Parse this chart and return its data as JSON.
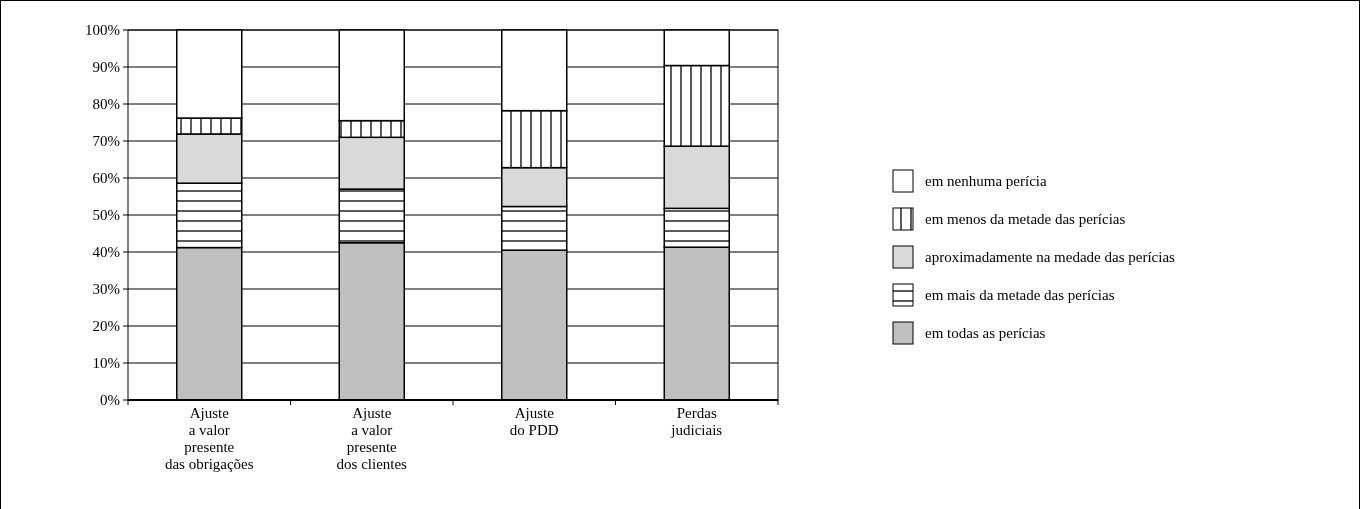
{
  "chart_data": {
    "type": "bar",
    "stacked": true,
    "categories": [
      "Ajuste\na valor\npresente\ndas obrigações",
      "Ajuste\na valor\npresente\ndos clientes",
      "Ajuste\ndo PDD",
      "Perdas\njudiciais"
    ],
    "series": [
      {
        "name": "em todas as perícias",
        "color": "#bfbfbf",
        "values": [
          41.2,
          42.5,
          40.5,
          41.3
        ]
      },
      {
        "name": "em mais da metade das perícias",
        "color": "#ffffff",
        "values": [
          17.4,
          14.5,
          11.8,
          10.5
        ]
      },
      {
        "name": "aproximadamente na medade das perícias",
        "color": "#d9d9d9",
        "values": [
          13.3,
          14,
          10.5,
          16.8
        ]
      },
      {
        "name": "em menos da metade das perícias",
        "color": "#ffffff",
        "values": [
          4.3,
          4.5,
          15.4,
          21.8
        ]
      },
      {
        "name": "em nenhuma perícia",
        "color": "#ffffff",
        "values": [
          23.8,
          24.5,
          21.8,
          9.6
        ]
      }
    ],
    "ylim": [
      0,
      100
    ],
    "yticks": [
      {
        "value": 0,
        "label": "0%"
      },
      {
        "value": 10,
        "label": "10%"
      },
      {
        "value": 20,
        "label": "20%"
      },
      {
        "value": 30,
        "label": "30%"
      },
      {
        "value": 40,
        "label": "40%"
      },
      {
        "value": 50,
        "label": "50%"
      },
      {
        "value": 60,
        "label": "60%"
      },
      {
        "value": 70,
        "label": "70%"
      },
      {
        "value": 80,
        "label": "80%"
      },
      {
        "value": 90,
        "label": "90%"
      },
      {
        "value": 100,
        "label": "100%"
      }
    ],
    "grid": "y",
    "legend": "right"
  }
}
